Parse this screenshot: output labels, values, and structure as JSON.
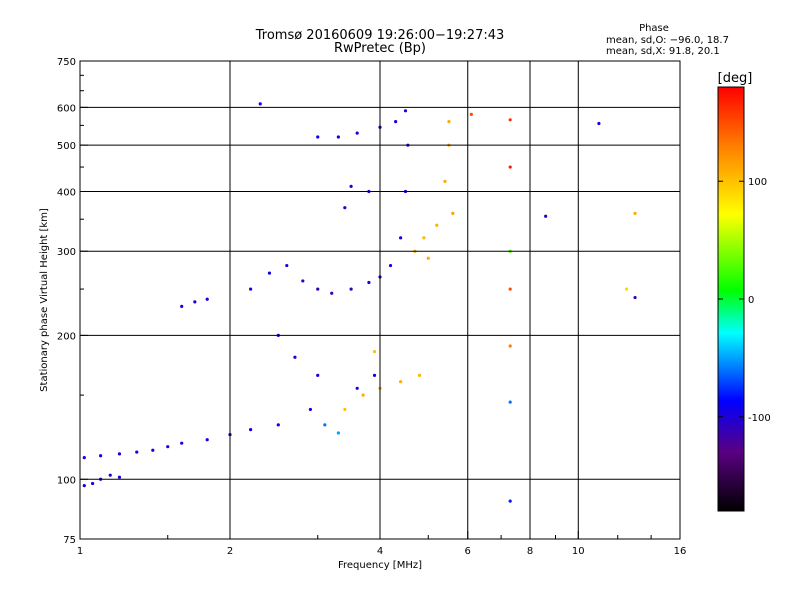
{
  "chart_data": {
    "type": "scatter",
    "title": "Tromsø 20160609 19:26:00−19:27:43",
    "subtitle": "RwPretec (Bp)",
    "xlabel": "Frequency [MHz]",
    "ylabel": "Stationary phase Virtual Height [km]",
    "x_scale": "log",
    "y_scale": "log",
    "xlim": [
      1,
      16
    ],
    "ylim": [
      75,
      750
    ],
    "x_ticks": [
      1,
      2,
      4,
      6,
      8,
      10,
      16
    ],
    "y_ticks": [
      75,
      100,
      200,
      300,
      400,
      500,
      600,
      750
    ],
    "x_gridlines": [
      2,
      4,
      6,
      8,
      10
    ],
    "y_gridlines": [
      100,
      200,
      300,
      400,
      500,
      600
    ],
    "grid": true,
    "stats": {
      "heading": "Phase",
      "line_o": "mean, sd,O: −96.0, 18.7",
      "line_x": "mean, sd,X:  91.8, 20.1"
    },
    "colorbar": {
      "label": "[deg]",
      "range": [
        -180,
        180
      ],
      "ticks": [
        100,
        0,
        -100
      ],
      "colors": [
        "#000000",
        "#5a0082",
        "#0000ff",
        "#00ffff",
        "#00ff00",
        "#ffff00",
        "#ff7f00",
        "#ff0000"
      ]
    },
    "series": [
      {
        "values": [
          {
            "x": 1.02,
            "y": 97,
            "phase": -100
          },
          {
            "x": 1.06,
            "y": 98,
            "phase": -105
          },
          {
            "x": 1.1,
            "y": 100,
            "phase": -100
          },
          {
            "x": 1.15,
            "y": 102,
            "phase": -98
          },
          {
            "x": 1.2,
            "y": 101,
            "phase": -102
          },
          {
            "x": 1.02,
            "y": 111,
            "phase": -100
          },
          {
            "x": 1.1,
            "y": 112,
            "phase": -98
          },
          {
            "x": 1.2,
            "y": 113,
            "phase": -100
          },
          {
            "x": 1.3,
            "y": 114,
            "phase": -100
          },
          {
            "x": 1.4,
            "y": 115,
            "phase": -98
          },
          {
            "x": 1.5,
            "y": 117,
            "phase": -100
          },
          {
            "x": 1.6,
            "y": 119,
            "phase": -100
          },
          {
            "x": 1.8,
            "y": 121,
            "phase": -98
          },
          {
            "x": 2.0,
            "y": 124,
            "phase": -100
          },
          {
            "x": 2.2,
            "y": 127,
            "phase": -95
          },
          {
            "x": 2.5,
            "y": 130,
            "phase": -92
          },
          {
            "x": 1.6,
            "y": 230,
            "phase": -100
          },
          {
            "x": 1.7,
            "y": 235,
            "phase": -100
          },
          {
            "x": 1.8,
            "y": 238,
            "phase": -98
          },
          {
            "x": 2.3,
            "y": 610,
            "phase": -100
          },
          {
            "x": 2.2,
            "y": 250,
            "phase": -100
          },
          {
            "x": 2.4,
            "y": 270,
            "phase": -95
          },
          {
            "x": 2.6,
            "y": 280,
            "phase": -100
          },
          {
            "x": 2.8,
            "y": 260,
            "phase": -105
          },
          {
            "x": 3.0,
            "y": 250,
            "phase": -110
          },
          {
            "x": 3.2,
            "y": 245,
            "phase": -115
          },
          {
            "x": 3.5,
            "y": 250,
            "phase": -110
          },
          {
            "x": 3.8,
            "y": 258,
            "phase": -105
          },
          {
            "x": 4.0,
            "y": 265,
            "phase": -100
          },
          {
            "x": 4.2,
            "y": 280,
            "phase": -95
          },
          {
            "x": 4.4,
            "y": 320,
            "phase": -95
          },
          {
            "x": 4.5,
            "y": 400,
            "phase": -100
          },
          {
            "x": 4.55,
            "y": 500,
            "phase": -100
          },
          {
            "x": 4.5,
            "y": 590,
            "phase": -100
          },
          {
            "x": 4.3,
            "y": 560,
            "phase": -100
          },
          {
            "x": 4.0,
            "y": 545,
            "phase": -98
          },
          {
            "x": 3.6,
            "y": 530,
            "phase": -100
          },
          {
            "x": 3.3,
            "y": 520,
            "phase": -98
          },
          {
            "x": 3.0,
            "y": 520,
            "phase": -92
          },
          {
            "x": 3.5,
            "y": 410,
            "phase": -100
          },
          {
            "x": 3.8,
            "y": 400,
            "phase": -98
          },
          {
            "x": 3.4,
            "y": 370,
            "phase": -100
          },
          {
            "x": 2.5,
            "y": 200,
            "phase": -95
          },
          {
            "x": 2.7,
            "y": 180,
            "phase": -100
          },
          {
            "x": 3.0,
            "y": 165,
            "phase": -98
          },
          {
            "x": 2.9,
            "y": 140,
            "phase": -95
          },
          {
            "x": 3.1,
            "y": 130,
            "phase": -60
          },
          {
            "x": 3.3,
            "y": 125,
            "phase": -50
          },
          {
            "x": 3.6,
            "y": 155,
            "phase": -100
          },
          {
            "x": 3.9,
            "y": 165,
            "phase": -100
          },
          {
            "x": 4.7,
            "y": 300,
            "phase": 110
          },
          {
            "x": 4.9,
            "y": 320,
            "phase": 105
          },
          {
            "x": 5.2,
            "y": 340,
            "phase": 108
          },
          {
            "x": 5.4,
            "y": 420,
            "phase": 110
          },
          {
            "x": 5.5,
            "y": 500,
            "phase": 112
          },
          {
            "x": 5.5,
            "y": 560,
            "phase": 110
          },
          {
            "x": 5.6,
            "y": 360,
            "phase": 115
          },
          {
            "x": 5.0,
            "y": 290,
            "phase": 110
          },
          {
            "x": 3.4,
            "y": 140,
            "phase": 100
          },
          {
            "x": 3.7,
            "y": 150,
            "phase": 110
          },
          {
            "x": 4.0,
            "y": 155,
            "phase": 112
          },
          {
            "x": 4.4,
            "y": 160,
            "phase": 110
          },
          {
            "x": 4.8,
            "y": 165,
            "phase": 105
          },
          {
            "x": 3.9,
            "y": 185,
            "phase": 100
          },
          {
            "x": 6.1,
            "y": 580,
            "phase": 150
          },
          {
            "x": 7.3,
            "y": 565,
            "phase": 160
          },
          {
            "x": 7.3,
            "y": 450,
            "phase": 170
          },
          {
            "x": 7.3,
            "y": 300,
            "phase": 30
          },
          {
            "x": 7.3,
            "y": 250,
            "phase": 150
          },
          {
            "x": 7.3,
            "y": 190,
            "phase": 130
          },
          {
            "x": 7.3,
            "y": 145,
            "phase": -60
          },
          {
            "x": 7.3,
            "y": 90,
            "phase": -80
          },
          {
            "x": 8.6,
            "y": 355,
            "phase": -110
          },
          {
            "x": 11.0,
            "y": 555,
            "phase": -100
          },
          {
            "x": 13.0,
            "y": 360,
            "phase": 110
          },
          {
            "x": 13.0,
            "y": 240,
            "phase": -110
          },
          {
            "x": 12.5,
            "y": 250,
            "phase": 90
          }
        ]
      }
    ]
  }
}
